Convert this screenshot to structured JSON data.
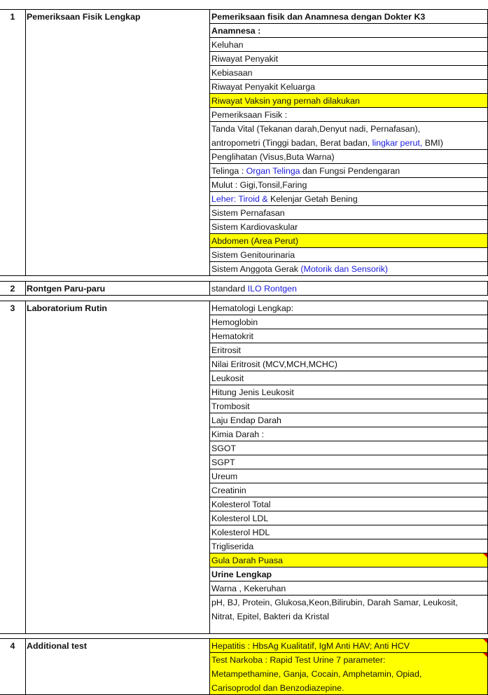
{
  "sections": [
    {
      "number": "1",
      "name": "Pemeriksaan Fisik Lengkap",
      "items": [
        {
          "bold": true,
          "parts": [
            {
              "t": "Pemeriksaan fisik dan Anamnesa dengan Dokter K3"
            }
          ]
        },
        {
          "bold": true,
          "parts": [
            {
              "t": "Anamnesa :"
            }
          ]
        },
        {
          "parts": [
            {
              "t": "Keluhan"
            }
          ]
        },
        {
          "parts": [
            {
              "t": "Riwayat Penyakit"
            }
          ]
        },
        {
          "parts": [
            {
              "t": "Kebiasaan"
            }
          ]
        },
        {
          "parts": [
            {
              "t": "Riwayat Penyakit Keluarga"
            }
          ]
        },
        {
          "yellow": true,
          "parts": [
            {
              "t": "Riwayat Vaksin yang pernah dilakukan"
            }
          ]
        },
        {
          "parts": [
            {
              "t": "Pemeriksaan Fisik :"
            }
          ]
        },
        {
          "lines": 2,
          "parts": [
            {
              "t": "Tanda Vital (Tekanan darah,Denyut nadi, Pernafasan),"
            },
            {
              "br": true
            },
            {
              "t": "antropometri (Tinggi badan, Berat badan, "
            },
            {
              "t": "lingkar perut,",
              "blue": true
            },
            {
              "t": " BMI)"
            }
          ]
        },
        {
          "parts": [
            {
              "t": "Penglihatan (Visus,Buta Warna)"
            }
          ]
        },
        {
          "parts": [
            {
              "t": "Telinga : "
            },
            {
              "t": "Organ Telinga",
              "blue": true
            },
            {
              "t": " dan Fungsi Pendengaran"
            }
          ]
        },
        {
          "parts": [
            {
              "t": "Mulut : Gigi,Tonsil,Faring"
            }
          ]
        },
        {
          "parts": [
            {
              "t": "Leher: Tiroid & ",
              "blue": true
            },
            {
              "t": "Kelenjar Getah Bening"
            }
          ]
        },
        {
          "parts": [
            {
              "t": "Sistem Pernafasan"
            }
          ]
        },
        {
          "parts": [
            {
              "t": "Sistem Kardiovaskular"
            }
          ]
        },
        {
          "yellow": true,
          "parts": [
            {
              "t": "Abdomen (Area Perut)"
            }
          ]
        },
        {
          "parts": [
            {
              "t": "Sistem Genitourinaria"
            }
          ]
        },
        {
          "parts": [
            {
              "t": "Sistem Anggota Gerak "
            },
            {
              "t": "(Motorik dan Sensorik)",
              "blue": true
            }
          ]
        }
      ]
    },
    {
      "number": "2",
      "name": "Rontgen Paru-paru",
      "items": [
        {
          "parts": [
            {
              "t": "standard "
            },
            {
              "t": "ILO Rontgen",
              "blue": true
            }
          ]
        }
      ]
    },
    {
      "number": "3",
      "name": "Laboratorium Rutin",
      "items": [
        {
          "parts": [
            {
              "t": "Hematologi Lengkap:"
            }
          ]
        },
        {
          "parts": [
            {
              "t": "Hemoglobin"
            }
          ]
        },
        {
          "parts": [
            {
              "t": "Hematokrit"
            }
          ]
        },
        {
          "parts": [
            {
              "t": "Eritrosit"
            }
          ]
        },
        {
          "parts": [
            {
              "t": "Nilai Eritrosit (MCV,MCH,MCHC)"
            }
          ]
        },
        {
          "parts": [
            {
              "t": "Leukosit"
            }
          ]
        },
        {
          "parts": [
            {
              "t": "Hitung Jenis Leukosit"
            }
          ]
        },
        {
          "parts": [
            {
              "t": "Trombosit"
            }
          ]
        },
        {
          "parts": [
            {
              "t": "Laju Endap Darah"
            }
          ]
        },
        {
          "parts": [
            {
              "t": "Kimia Darah :"
            }
          ]
        },
        {
          "parts": [
            {
              "t": "SGOT"
            }
          ]
        },
        {
          "parts": [
            {
              "t": "SGPT"
            }
          ]
        },
        {
          "parts": [
            {
              "t": "Ureum"
            }
          ]
        },
        {
          "parts": [
            {
              "t": "Creatinin"
            }
          ]
        },
        {
          "parts": [
            {
              "t": "Kolesterol Total"
            }
          ]
        },
        {
          "parts": [
            {
              "t": "Kolesterol LDL"
            }
          ]
        },
        {
          "parts": [
            {
              "t": "Kolesterol HDL"
            }
          ]
        },
        {
          "parts": [
            {
              "t": "Trigliserida"
            }
          ]
        },
        {
          "yellow": true,
          "comment": true,
          "parts": [
            {
              "t": "Gula Darah Puasa"
            }
          ]
        },
        {
          "bold": true,
          "parts": [
            {
              "t": "Urine Lengkap"
            }
          ]
        },
        {
          "parts": [
            {
              "t": "Warna , Kekeruhan"
            }
          ]
        },
        {
          "lines": 2.7,
          "parts": [
            {
              "t": "pH, BJ, Protein, Glukosa,Keon,Bilirubin, Darah Samar, Leukosit,"
            },
            {
              "br": true
            },
            {
              "t": "Nitrat, Epitel, Bakteri da Kristal"
            }
          ]
        }
      ]
    },
    {
      "number": "4",
      "name": "Additional test",
      "items": [
        {
          "yellow": true,
          "comment": true,
          "parts": [
            {
              "t": "Hepatitis : HbsAg Kualitatif, IgM Anti HAV; Anti HCV"
            }
          ]
        },
        {
          "yellow": true,
          "comment": true,
          "lines": 3,
          "parts": [
            {
              "t": "Test Narkoba : Rapid Test Urine 7 parameter:"
            },
            {
              "br": true
            },
            {
              "t": "Metampethamine, Ganja, Cocain, Amphetamin, Opiad,"
            },
            {
              "br": true
            },
            {
              "t": "Carisoprodol dan Benzodiazepine."
            }
          ]
        }
      ]
    }
  ],
  "colors": {
    "highlight": "#ffff00",
    "link_text": "#1a1adc",
    "comment_flag": "#dd0000"
  }
}
